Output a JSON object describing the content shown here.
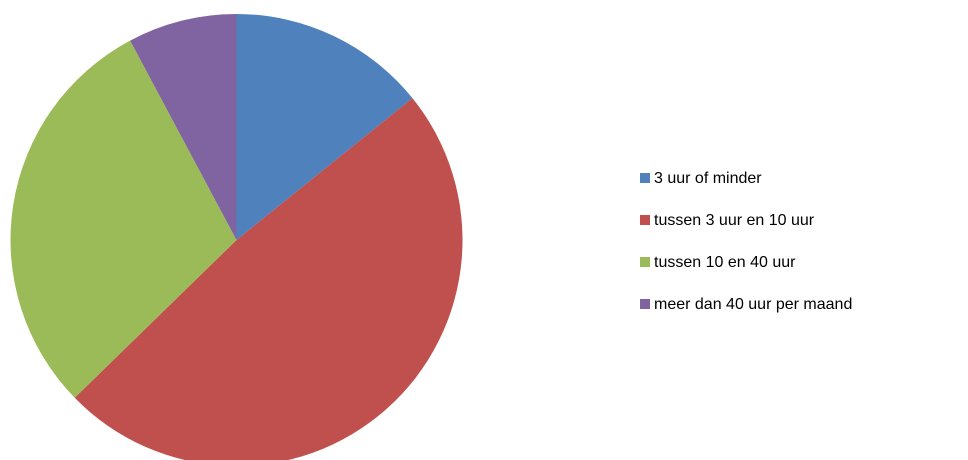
{
  "chart_data": {
    "type": "pie",
    "categories": [
      "3 uur of minder",
      "tussen 3 uur en 10 uur",
      "tussen 10 en 40 uur",
      "meer dan 40 uur per maand"
    ],
    "values": [
      14.2,
      48.5,
      29.5,
      7.8
    ],
    "colors": [
      "#4f81bd",
      "#c0504d",
      "#9bbb59",
      "#8064a2"
    ],
    "legend": "right"
  }
}
